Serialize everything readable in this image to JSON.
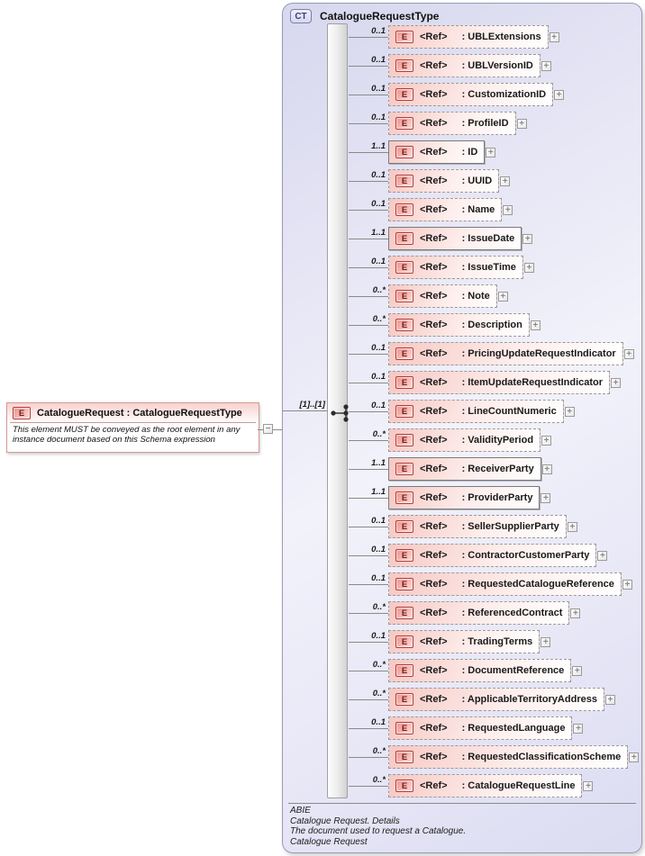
{
  "root_element": {
    "badge": "E",
    "title": "CatalogueRequest : CatalogueRequestType",
    "annotation": "This element MUST be conveyed as the root element in any instance document based on this Schema expression"
  },
  "connector": {
    "group_cardinality": "[1]..[1]"
  },
  "icons": {
    "expand": "+",
    "collapse": "−"
  },
  "complex_type": {
    "badge": "CT",
    "title": "CatalogueRequestType",
    "element_badge": "E",
    "ref_label": "<Ref>",
    "name_prefix": ": ",
    "elements": [
      {
        "cardinality": "0..1",
        "name": "UBLExtensions",
        "required": false
      },
      {
        "cardinality": "0..1",
        "name": "UBLVersionID",
        "required": false
      },
      {
        "cardinality": "0..1",
        "name": "CustomizationID",
        "required": false
      },
      {
        "cardinality": "0..1",
        "name": "ProfileID",
        "required": false
      },
      {
        "cardinality": "1..1",
        "name": "ID",
        "required": true
      },
      {
        "cardinality": "0..1",
        "name": "UUID",
        "required": false
      },
      {
        "cardinality": "0..1",
        "name": "Name",
        "required": false
      },
      {
        "cardinality": "1..1",
        "name": "IssueDate",
        "required": true
      },
      {
        "cardinality": "0..1",
        "name": "IssueTime",
        "required": false
      },
      {
        "cardinality": "0..*",
        "name": "Note",
        "required": false
      },
      {
        "cardinality": "0..*",
        "name": "Description",
        "required": false
      },
      {
        "cardinality": "0..1",
        "name": "PricingUpdateRequestIndicator",
        "required": false
      },
      {
        "cardinality": "0..1",
        "name": "ItemUpdateRequestIndicator",
        "required": false
      },
      {
        "cardinality": "0..1",
        "name": "LineCountNumeric",
        "required": false
      },
      {
        "cardinality": "0..*",
        "name": "ValidityPeriod",
        "required": false
      },
      {
        "cardinality": "1..1",
        "name": "ReceiverParty",
        "required": true
      },
      {
        "cardinality": "1..1",
        "name": "ProviderParty",
        "required": true
      },
      {
        "cardinality": "0..1",
        "name": "SellerSupplierParty",
        "required": false
      },
      {
        "cardinality": "0..1",
        "name": "ContractorCustomerParty",
        "required": false
      },
      {
        "cardinality": "0..1",
        "name": "RequestedCatalogueReference",
        "required": false
      },
      {
        "cardinality": "0..*",
        "name": "ReferencedContract",
        "required": false
      },
      {
        "cardinality": "0..1",
        "name": "TradingTerms",
        "required": false
      },
      {
        "cardinality": "0..*",
        "name": "DocumentReference",
        "required": false
      },
      {
        "cardinality": "0..*",
        "name": "ApplicableTerritoryAddress",
        "required": false
      },
      {
        "cardinality": "0..1",
        "name": "RequestedLanguage",
        "required": false
      },
      {
        "cardinality": "0..*",
        "name": "RequestedClassificationScheme",
        "required": false
      },
      {
        "cardinality": "0..*",
        "name": "CatalogueRequestLine",
        "required": false
      }
    ],
    "footer": [
      "ABIE",
      "Catalogue Request. Details",
      "The document used to request a Catalogue.",
      "Catalogue Request"
    ]
  },
  "colors": {
    "container_fill": "#d7d7ee",
    "container_border": "#9a9ab8",
    "element_fill": "#f6c8c3",
    "element_border_optional": "#9a9a9a",
    "element_border_required": "#7a7a7a",
    "element_badge_border": "#b23b3b",
    "element_badge_text": "#701c1c",
    "ct_badge_text": "#3d3d7a",
    "connector_line": "#8a8a8a"
  }
}
